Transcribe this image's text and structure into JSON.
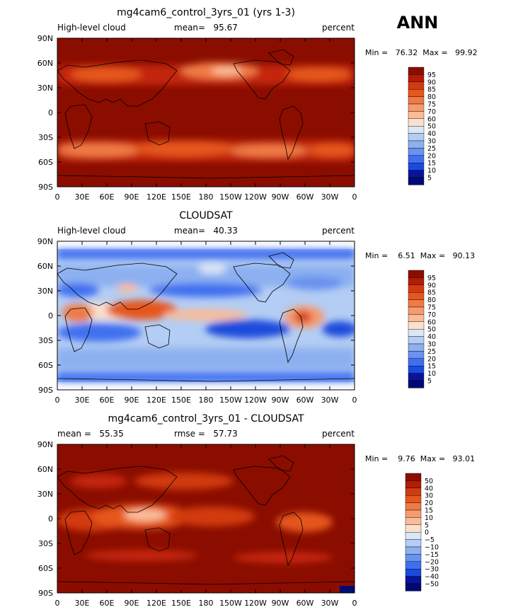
{
  "season": "ANN",
  "chart_data": [
    {
      "type": "heatmap",
      "title": "mg4cam6_control_3yrs_01 (yrs 1-3)",
      "left_label": "High-level cloud",
      "center_label": "mean=   95.67",
      "right_label": "percent",
      "stats": "Min =   76.32  Max =   99.92",
      "min": 76.32,
      "max": 99.92,
      "mean": 95.67,
      "x_ticks": [
        "0",
        "30E",
        "60E",
        "90E",
        "120E",
        "150E",
        "180",
        "150W",
        "120W",
        "90W",
        "60W",
        "30W",
        "0"
      ],
      "y_ticks": [
        "90N",
        "60N",
        "30N",
        "0",
        "30S",
        "60S",
        "90S"
      ],
      "xlim": [
        0,
        360
      ],
      "ylim": [
        -90,
        90
      ],
      "colorbar_labels": [
        "95",
        "90",
        "85",
        "80",
        "75",
        "70",
        "60",
        "50",
        "40",
        "30",
        "25",
        "20",
        "15",
        "10",
        "5"
      ],
      "colorbar_colors": [
        "#8b0d00",
        "#b31c05",
        "#d23b10",
        "#e5571f",
        "#f07a45",
        "#f79a6e",
        "#fbbc98",
        "#fde0cb",
        "#dbe7f7",
        "#b3cdf4",
        "#8cb0f0",
        "#6a92ee",
        "#3f6ff0",
        "#1b4bdc",
        "#08149c",
        "#000a73"
      ]
    },
    {
      "type": "heatmap",
      "title": "CLOUDSAT",
      "left_label": "High-level cloud",
      "center_label": "mean=   40.33",
      "right_label": "percent",
      "stats": "Min =    6.51  Max =   90.13",
      "min": 6.51,
      "max": 90.13,
      "mean": 40.33,
      "x_ticks": [
        "0",
        "30E",
        "60E",
        "90E",
        "120E",
        "150E",
        "180",
        "150W",
        "120W",
        "90W",
        "60W",
        "30W",
        "0"
      ],
      "y_ticks": [
        "90N",
        "60N",
        "30N",
        "0",
        "30S",
        "60S",
        "90S"
      ],
      "xlim": [
        0,
        360
      ],
      "ylim": [
        -90,
        90
      ],
      "colorbar_labels": [
        "95",
        "90",
        "85",
        "80",
        "75",
        "70",
        "60",
        "50",
        "40",
        "30",
        "25",
        "20",
        "15",
        "10",
        "5"
      ],
      "colorbar_colors": [
        "#8b0d00",
        "#b31c05",
        "#d23b10",
        "#e5571f",
        "#f07a45",
        "#f79a6e",
        "#fbbc98",
        "#fde0cb",
        "#dbe7f7",
        "#b3cdf4",
        "#8cb0f0",
        "#6a92ee",
        "#3f6ff0",
        "#1b4bdc",
        "#08149c",
        "#000a73"
      ]
    },
    {
      "type": "heatmap",
      "title": "mg4cam6_control_3yrs_01 - CLOUDSAT",
      "left_label": "mean =   55.35",
      "center_label": "rmse =   57.73",
      "right_label": "percent",
      "stats": "Min =    9.76  Max =   93.01",
      "min": 9.76,
      "max": 93.01,
      "mean": 55.35,
      "rmse": 57.73,
      "x_ticks": [
        "0",
        "30E",
        "60E",
        "90E",
        "120E",
        "150E",
        "180",
        "150W",
        "120W",
        "90W",
        "60W",
        "30W",
        "0"
      ],
      "y_ticks": [
        "90N",
        "60N",
        "30N",
        "0",
        "30S",
        "60S",
        "90S"
      ],
      "xlim": [
        0,
        360
      ],
      "ylim": [
        -90,
        90
      ],
      "colorbar_labels": [
        "50",
        "40",
        "30",
        "20",
        "15",
        "10",
        "5",
        "0",
        "−5",
        "−10",
        "−15",
        "−20",
        "−30",
        "−40",
        "−50"
      ],
      "colorbar_colors": [
        "#8b0d00",
        "#b31c05",
        "#d23b10",
        "#e5571f",
        "#f07a45",
        "#f79a6e",
        "#fbbc98",
        "#fde0cb",
        "#dbe7f7",
        "#b3cdf4",
        "#8cb0f0",
        "#6a92ee",
        "#3f6ff0",
        "#1b4bdc",
        "#08149c",
        "#000a73"
      ]
    }
  ]
}
